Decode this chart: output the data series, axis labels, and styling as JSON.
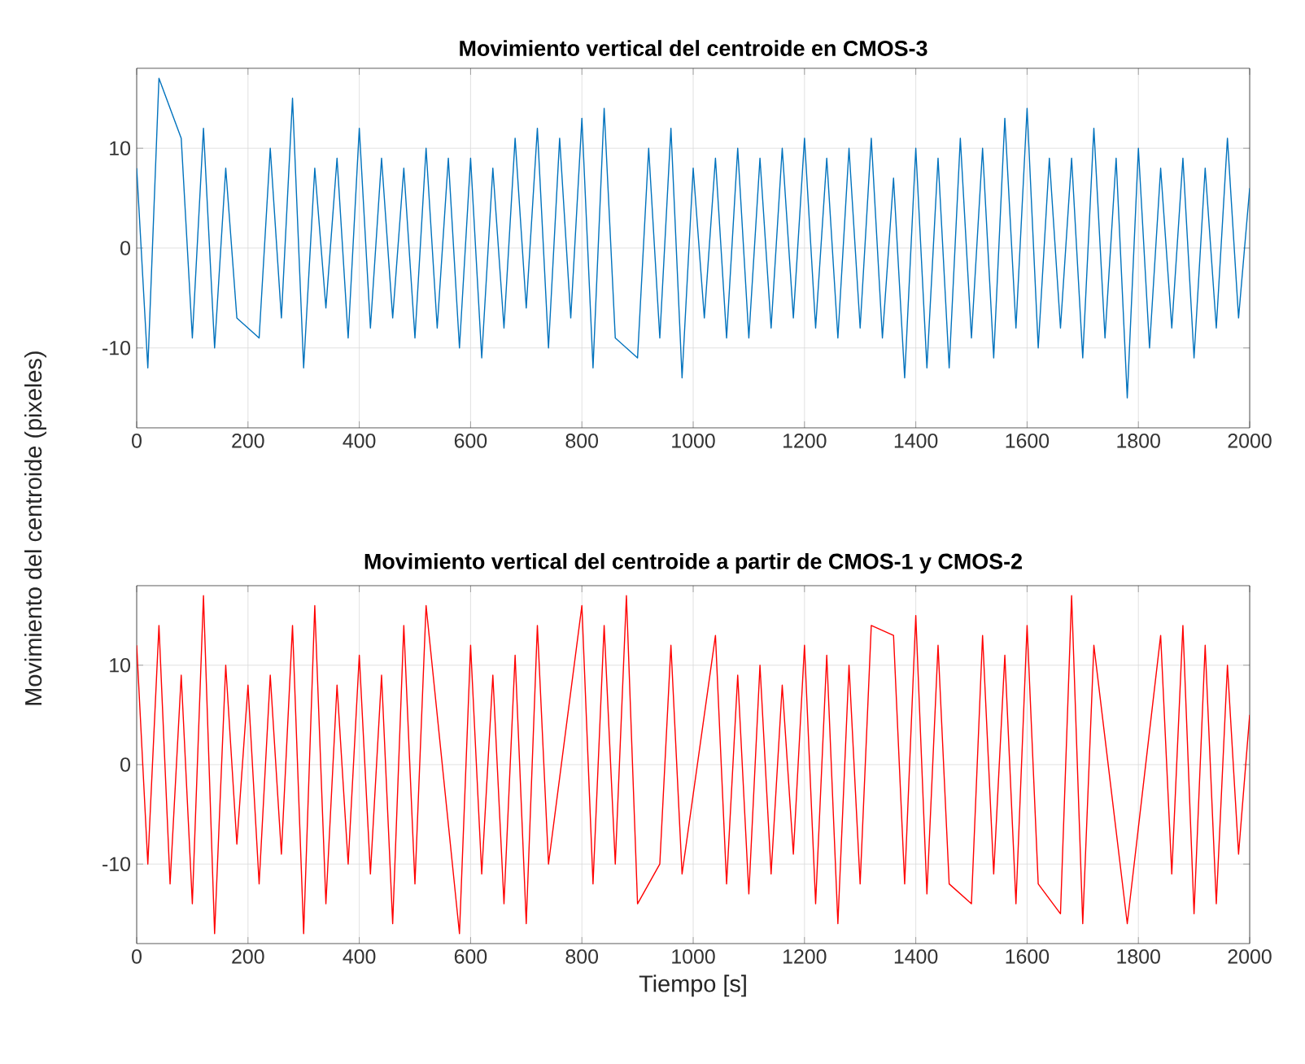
{
  "chart_data": [
    {
      "type": "line",
      "title": "Movimiento vertical del centroide en CMOS-3",
      "grid": true,
      "xlim": [
        0,
        2000
      ],
      "ylim": [
        -18,
        18
      ],
      "xticks": [
        0,
        200,
        400,
        600,
        800,
        1000,
        1200,
        1400,
        1600,
        1800,
        2000
      ],
      "yticks": [
        -10,
        0,
        10
      ],
      "x": [
        0,
        20,
        40,
        60,
        80,
        100,
        120,
        140,
        160,
        180,
        200,
        220,
        240,
        260,
        280,
        300,
        320,
        340,
        360,
        380,
        400,
        420,
        440,
        460,
        480,
        500,
        520,
        540,
        560,
        580,
        600,
        620,
        640,
        660,
        680,
        700,
        720,
        740,
        760,
        780,
        800,
        820,
        840,
        860,
        880,
        900,
        920,
        940,
        960,
        980,
        1000,
        1020,
        1040,
        1060,
        1080,
        1100,
        1120,
        1140,
        1160,
        1180,
        1200,
        1220,
        1240,
        1260,
        1280,
        1300,
        1320,
        1340,
        1360,
        1380,
        1400,
        1420,
        1440,
        1460,
        1480,
        1500,
        1520,
        1540,
        1560,
        1580,
        1600,
        1620,
        1640,
        1660,
        1680,
        1700,
        1720,
        1740,
        1760,
        1780,
        1800,
        1820,
        1840,
        1860,
        1880,
        1900,
        1920,
        1940,
        1960,
        1980,
        2000
      ],
      "series": [
        {
          "color": "#0072bd",
          "values": [
            8,
            -12,
            17,
            null,
            11,
            -9,
            12,
            -10,
            8,
            -7,
            null,
            -9,
            10,
            -7,
            15,
            -12,
            8,
            -6,
            9,
            -9,
            12,
            -8,
            9,
            -7,
            8,
            -9,
            10,
            -8,
            9,
            -10,
            9,
            -11,
            8,
            -8,
            11,
            -6,
            12,
            -10,
            11,
            -7,
            13,
            -12,
            14,
            -9,
            null,
            -11,
            10,
            -9,
            12,
            -13,
            8,
            -7,
            9,
            -9,
            10,
            -9,
            9,
            -8,
            10,
            -7,
            11,
            -8,
            9,
            -9,
            10,
            -8,
            11,
            -9,
            7,
            -13,
            10,
            -12,
            9,
            -12,
            11,
            -9,
            10,
            -11,
            13,
            -8,
            14,
            -10,
            9,
            -8,
            9,
            -11,
            12,
            -9,
            9,
            -15,
            10,
            -10,
            8,
            -8,
            9,
            -11,
            8,
            -8,
            11,
            -7,
            6
          ]
        }
      ]
    },
    {
      "type": "line",
      "title": "Movimiento vertical del centroide a partir de CMOS-1 y CMOS-2",
      "xlabel": "Tiempo [s]",
      "ylabel": "Movimiento del centroide (pixeles)",
      "grid": true,
      "xlim": [
        0,
        2000
      ],
      "ylim": [
        -18,
        18
      ],
      "xticks": [
        0,
        200,
        400,
        600,
        800,
        1000,
        1200,
        1400,
        1600,
        1800,
        2000
      ],
      "yticks": [
        -10,
        0,
        10
      ],
      "x": [
        0,
        20,
        40,
        60,
        80,
        100,
        120,
        140,
        160,
        180,
        200,
        220,
        240,
        260,
        280,
        300,
        320,
        340,
        360,
        380,
        400,
        420,
        440,
        460,
        480,
        500,
        520,
        540,
        560,
        580,
        600,
        620,
        640,
        660,
        680,
        700,
        720,
        740,
        760,
        780,
        800,
        820,
        840,
        860,
        880,
        900,
        920,
        940,
        960,
        980,
        1000,
        1020,
        1040,
        1060,
        1080,
        1100,
        1120,
        1140,
        1160,
        1180,
        1200,
        1220,
        1240,
        1260,
        1280,
        1300,
        1320,
        1340,
        1360,
        1380,
        1400,
        1420,
        1440,
        1460,
        1480,
        1500,
        1520,
        1540,
        1560,
        1580,
        1600,
        1620,
        1640,
        1660,
        1680,
        1700,
        1720,
        1740,
        1760,
        1780,
        1800,
        1820,
        1840,
        1860,
        1880,
        1900,
        1920,
        1940,
        1960,
        1980,
        2000
      ],
      "series": [
        {
          "color": "#ff0000",
          "values": [
            12,
            -10,
            14,
            -12,
            9,
            -14,
            17,
            -17,
            10,
            -8,
            8,
            -12,
            9,
            -9,
            14,
            -17,
            16,
            -14,
            8,
            -10,
            11,
            -11,
            9,
            -16,
            14,
            -12,
            16,
            null,
            null,
            -17,
            12,
            -11,
            9,
            -14,
            11,
            -16,
            14,
            -10,
            null,
            null,
            16,
            -12,
            14,
            -10,
            17,
            -14,
            null,
            -10,
            12,
            -11,
            null,
            null,
            13,
            -12,
            9,
            -13,
            10,
            -11,
            8,
            -9,
            12,
            -14,
            11,
            -16,
            10,
            -12,
            14,
            null,
            13,
            -12,
            15,
            -13,
            12,
            -12,
            null,
            -14,
            13,
            -11,
            11,
            -14,
            14,
            -12,
            null,
            -15,
            17,
            -16,
            12,
            null,
            null,
            -16,
            null,
            null,
            13,
            -11,
            14,
            -15,
            12,
            -14,
            10,
            -9,
            5
          ]
        }
      ]
    }
  ]
}
